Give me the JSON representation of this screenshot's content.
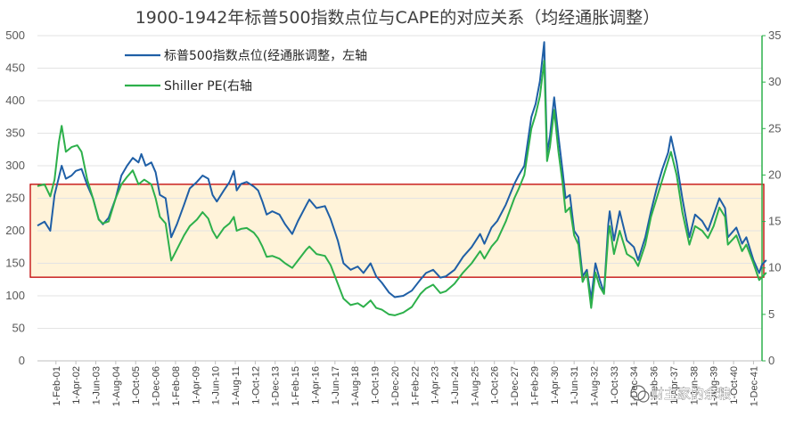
{
  "chart_data": {
    "type": "line",
    "title": "1900-1942年标普500指数点位与CAPE的对应关系（均经通胀调整）",
    "x_start": "1900-01",
    "x_end": "1942-06",
    "x_tick_labels": [
      "1-Feb-01",
      "1-Apr-02",
      "1-Jun-03",
      "1-Aug-04",
      "1-Oct-05",
      "1-Dec-06",
      "1-Feb-08",
      "1-Apr-09",
      "1-Jun-10",
      "1-Aug-11",
      "1-Oct-12",
      "1-Dec-13",
      "1-Feb-15",
      "1-Apr-16",
      "1-Jun-17",
      "1-Aug-18",
      "1-Oct-19",
      "1-Dec-20",
      "1-Feb-22",
      "1-Apr-23",
      "1-Jun-24",
      "1-Aug-25",
      "1-Oct-26",
      "1-Dec-27",
      "1-Feb-29",
      "1-Apr-30",
      "1-Jun-31",
      "1-Aug-32",
      "1-Oct-33",
      "1-Dec-34",
      "1-Feb-36",
      "1-Apr-37",
      "1-Jun-38",
      "1-Aug-39",
      "1-Oct-40",
      "1-Dec-41"
    ],
    "y_left": {
      "min": 0,
      "max": 500,
      "step": 50,
      "color": "#595959"
    },
    "y_right": {
      "min": 0,
      "max": 35,
      "step": 5,
      "color": "#2db04b"
    },
    "band": {
      "axis": "right",
      "from": 9,
      "to": 19,
      "fill": "#fff3d9",
      "border": "#c00000"
    },
    "grid": true,
    "legend_position": "top-left",
    "series": [
      {
        "name": "标普500指数点位(经通胀调整，左轴",
        "axis": "left",
        "color": "#1f5fa6",
        "points": [
          [
            "1900-01",
            208
          ],
          [
            "1900-06",
            214
          ],
          [
            "1900-10",
            200
          ],
          [
            "1901-01",
            255
          ],
          [
            "1901-06",
            300
          ],
          [
            "1901-09",
            280
          ],
          [
            "1902-01",
            285
          ],
          [
            "1902-04",
            292
          ],
          [
            "1902-08",
            295
          ],
          [
            "1902-12",
            270
          ],
          [
            "1903-04",
            250
          ],
          [
            "1903-08",
            218
          ],
          [
            "1903-11",
            210
          ],
          [
            "1904-03",
            220
          ],
          [
            "1904-08",
            250
          ],
          [
            "1904-12",
            285
          ],
          [
            "1905-04",
            300
          ],
          [
            "1905-08",
            312
          ],
          [
            "1905-12",
            305
          ],
          [
            "1906-02",
            318
          ],
          [
            "1906-05",
            300
          ],
          [
            "1906-09",
            305
          ],
          [
            "1906-12",
            290
          ],
          [
            "1907-03",
            255
          ],
          [
            "1907-07",
            250
          ],
          [
            "1907-11",
            190
          ],
          [
            "1908-03",
            210
          ],
          [
            "1908-08",
            240
          ],
          [
            "1908-12",
            265
          ],
          [
            "1909-05",
            275
          ],
          [
            "1909-09",
            285
          ],
          [
            "1910-01",
            280
          ],
          [
            "1910-04",
            255
          ],
          [
            "1910-07",
            245
          ],
          [
            "1910-12",
            262
          ],
          [
            "1911-04",
            275
          ],
          [
            "1911-07",
            292
          ],
          [
            "1911-09",
            262
          ],
          [
            "1911-12",
            272
          ],
          [
            "1912-04",
            275
          ],
          [
            "1912-09",
            268
          ],
          [
            "1912-12",
            262
          ],
          [
            "1913-03",
            245
          ],
          [
            "1913-06",
            225
          ],
          [
            "1913-10",
            230
          ],
          [
            "1914-03",
            225
          ],
          [
            "1914-07",
            210
          ],
          [
            "1914-12",
            195
          ],
          [
            "1915-04",
            215
          ],
          [
            "1915-10",
            240
          ],
          [
            "1915-12",
            248
          ],
          [
            "1916-05",
            235
          ],
          [
            "1916-11",
            238
          ],
          [
            "1917-03",
            218
          ],
          [
            "1917-08",
            185
          ],
          [
            "1917-12",
            150
          ],
          [
            "1918-05",
            140
          ],
          [
            "1918-10",
            145
          ],
          [
            "1919-02",
            135
          ],
          [
            "1919-07",
            150
          ],
          [
            "1919-11",
            130
          ],
          [
            "1920-03",
            120
          ],
          [
            "1920-08",
            105
          ],
          [
            "1920-12",
            98
          ],
          [
            "1921-06",
            100
          ],
          [
            "1921-12",
            108
          ],
          [
            "1922-06",
            125
          ],
          [
            "1922-10",
            135
          ],
          [
            "1923-03",
            140
          ],
          [
            "1923-08",
            128
          ],
          [
            "1923-12",
            130
          ],
          [
            "1924-06",
            140
          ],
          [
            "1924-12",
            160
          ],
          [
            "1925-06",
            175
          ],
          [
            "1925-12",
            195
          ],
          [
            "1926-03",
            180
          ],
          [
            "1926-08",
            205
          ],
          [
            "1926-12",
            215
          ],
          [
            "1927-06",
            240
          ],
          [
            "1927-12",
            272
          ],
          [
            "1928-03",
            285
          ],
          [
            "1928-07",
            300
          ],
          [
            "1928-12",
            375
          ],
          [
            "1929-03",
            395
          ],
          [
            "1929-06",
            430
          ],
          [
            "1929-09",
            490
          ],
          [
            "1929-11",
            320
          ],
          [
            "1930-01",
            345
          ],
          [
            "1930-04",
            405
          ],
          [
            "1930-07",
            345
          ],
          [
            "1930-10",
            290
          ],
          [
            "1930-12",
            250
          ],
          [
            "1931-03",
            255
          ],
          [
            "1931-06",
            200
          ],
          [
            "1931-09",
            190
          ],
          [
            "1931-12",
            130
          ],
          [
            "1932-03",
            140
          ],
          [
            "1932-06",
            95
          ],
          [
            "1932-09",
            150
          ],
          [
            "1932-12",
            125
          ],
          [
            "1933-03",
            105
          ],
          [
            "1933-06",
            210
          ],
          [
            "1933-07",
            230
          ],
          [
            "1933-10",
            185
          ],
          [
            "1934-02",
            230
          ],
          [
            "1934-07",
            185
          ],
          [
            "1934-12",
            175
          ],
          [
            "1935-03",
            155
          ],
          [
            "1935-08",
            190
          ],
          [
            "1935-12",
            230
          ],
          [
            "1936-04",
            265
          ],
          [
            "1936-08",
            295
          ],
          [
            "1936-12",
            320
          ],
          [
            "1937-02",
            345
          ],
          [
            "1937-06",
            305
          ],
          [
            "1937-10",
            250
          ],
          [
            "1938-03",
            190
          ],
          [
            "1938-07",
            225
          ],
          [
            "1938-12",
            215
          ],
          [
            "1939-04",
            200
          ],
          [
            "1939-08",
            225
          ],
          [
            "1939-12",
            250
          ],
          [
            "1940-04",
            235
          ],
          [
            "1940-06",
            190
          ],
          [
            "1940-12",
            205
          ],
          [
            "1941-04",
            180
          ],
          [
            "1941-07",
            190
          ],
          [
            "1941-12",
            155
          ],
          [
            "1942-04",
            135
          ],
          [
            "1942-06",
            148
          ],
          [
            "1942-09",
            155
          ]
        ]
      },
      {
        "name": "Shiller PE(右轴",
        "axis": "right",
        "color": "#2db04b",
        "points": [
          [
            "1900-01",
            18.8
          ],
          [
            "1900-06",
            19.0
          ],
          [
            "1900-10",
            17.7
          ],
          [
            "1901-01",
            19.5
          ],
          [
            "1901-04",
            23.5
          ],
          [
            "1901-06",
            25.3
          ],
          [
            "1901-09",
            22.5
          ],
          [
            "1902-01",
            23.0
          ],
          [
            "1902-05",
            23.2
          ],
          [
            "1902-08",
            22.5
          ],
          [
            "1902-12",
            19.5
          ],
          [
            "1903-04",
            17.5
          ],
          [
            "1903-08",
            15.2
          ],
          [
            "1903-11",
            14.8
          ],
          [
            "1904-03",
            15.0
          ],
          [
            "1904-08",
            17.5
          ],
          [
            "1904-12",
            19.0
          ],
          [
            "1905-04",
            19.8
          ],
          [
            "1905-08",
            20.5
          ],
          [
            "1905-12",
            19.0
          ],
          [
            "1906-04",
            19.5
          ],
          [
            "1906-09",
            19.0
          ],
          [
            "1906-12",
            17.5
          ],
          [
            "1907-03",
            15.5
          ],
          [
            "1907-07",
            14.8
          ],
          [
            "1907-11",
            10.8
          ],
          [
            "1908-03",
            12.0
          ],
          [
            "1908-08",
            13.5
          ],
          [
            "1908-12",
            14.5
          ],
          [
            "1909-05",
            15.2
          ],
          [
            "1909-09",
            16.0
          ],
          [
            "1910-01",
            15.3
          ],
          [
            "1910-04",
            14.0
          ],
          [
            "1910-07",
            13.2
          ],
          [
            "1910-12",
            14.3
          ],
          [
            "1911-04",
            14.8
          ],
          [
            "1911-07",
            15.5
          ],
          [
            "1911-09",
            14.0
          ],
          [
            "1911-12",
            14.2
          ],
          [
            "1912-04",
            14.3
          ],
          [
            "1912-09",
            13.8
          ],
          [
            "1912-12",
            13.2
          ],
          [
            "1913-03",
            12.3
          ],
          [
            "1913-06",
            11.2
          ],
          [
            "1913-10",
            11.3
          ],
          [
            "1914-03",
            11.0
          ],
          [
            "1914-07",
            10.5
          ],
          [
            "1914-12",
            10.0
          ],
          [
            "1915-04",
            10.8
          ],
          [
            "1915-10",
            12.0
          ],
          [
            "1915-12",
            12.3
          ],
          [
            "1916-05",
            11.5
          ],
          [
            "1916-11",
            11.3
          ],
          [
            "1917-03",
            10.3
          ],
          [
            "1917-08",
            8.3
          ],
          [
            "1917-12",
            6.7
          ],
          [
            "1918-05",
            6.0
          ],
          [
            "1918-10",
            6.2
          ],
          [
            "1919-02",
            5.8
          ],
          [
            "1919-07",
            6.5
          ],
          [
            "1919-11",
            5.7
          ],
          [
            "1920-03",
            5.5
          ],
          [
            "1920-08",
            5.0
          ],
          [
            "1920-12",
            4.9
          ],
          [
            "1921-06",
            5.2
          ],
          [
            "1921-12",
            5.8
          ],
          [
            "1922-06",
            7.2
          ],
          [
            "1922-10",
            7.8
          ],
          [
            "1923-03",
            8.2
          ],
          [
            "1923-08",
            7.3
          ],
          [
            "1923-12",
            7.5
          ],
          [
            "1924-06",
            8.3
          ],
          [
            "1924-12",
            9.5
          ],
          [
            "1925-06",
            10.5
          ],
          [
            "1925-12",
            11.8
          ],
          [
            "1926-03",
            11.0
          ],
          [
            "1926-08",
            12.3
          ],
          [
            "1926-12",
            13.0
          ],
          [
            "1927-06",
            15.0
          ],
          [
            "1927-12",
            17.5
          ],
          [
            "1928-03",
            18.5
          ],
          [
            "1928-07",
            20.0
          ],
          [
            "1928-12",
            25.0
          ],
          [
            "1929-03",
            26.5
          ],
          [
            "1929-06",
            28.5
          ],
          [
            "1929-09",
            32.3
          ],
          [
            "1929-11",
            21.5
          ],
          [
            "1930-01",
            23.0
          ],
          [
            "1930-04",
            27.0
          ],
          [
            "1930-07",
            22.5
          ],
          [
            "1930-10",
            19.0
          ],
          [
            "1930-12",
            16.0
          ],
          [
            "1931-03",
            16.5
          ],
          [
            "1931-06",
            13.5
          ],
          [
            "1931-09",
            12.5
          ],
          [
            "1931-12",
            8.5
          ],
          [
            "1932-03",
            9.5
          ],
          [
            "1932-06",
            5.7
          ],
          [
            "1932-09",
            9.5
          ],
          [
            "1932-12",
            8.0
          ],
          [
            "1933-03",
            7.2
          ],
          [
            "1933-06",
            13.5
          ],
          [
            "1933-07",
            14.5
          ],
          [
            "1933-10",
            11.5
          ],
          [
            "1934-02",
            14.0
          ],
          [
            "1934-07",
            11.5
          ],
          [
            "1934-12",
            11.0
          ],
          [
            "1935-03",
            10.2
          ],
          [
            "1935-08",
            12.5
          ],
          [
            "1935-12",
            15.5
          ],
          [
            "1936-04",
            17.5
          ],
          [
            "1936-08",
            19.5
          ],
          [
            "1936-12",
            21.5
          ],
          [
            "1937-02",
            22.5
          ],
          [
            "1937-06",
            20.0
          ],
          [
            "1937-10",
            16.0
          ],
          [
            "1938-03",
            12.5
          ],
          [
            "1938-07",
            14.5
          ],
          [
            "1938-12",
            14.0
          ],
          [
            "1939-04",
            13.2
          ],
          [
            "1939-08",
            14.5
          ],
          [
            "1939-12",
            16.5
          ],
          [
            "1940-04",
            15.5
          ],
          [
            "1940-06",
            12.5
          ],
          [
            "1940-12",
            13.5
          ],
          [
            "1941-04",
            11.8
          ],
          [
            "1941-07",
            12.5
          ],
          [
            "1941-12",
            10.5
          ],
          [
            "1942-04",
            8.7
          ],
          [
            "1942-06",
            9.0
          ],
          [
            "1942-09",
            9.5
          ]
        ]
      }
    ],
    "watermark": "财主家的余粮"
  }
}
